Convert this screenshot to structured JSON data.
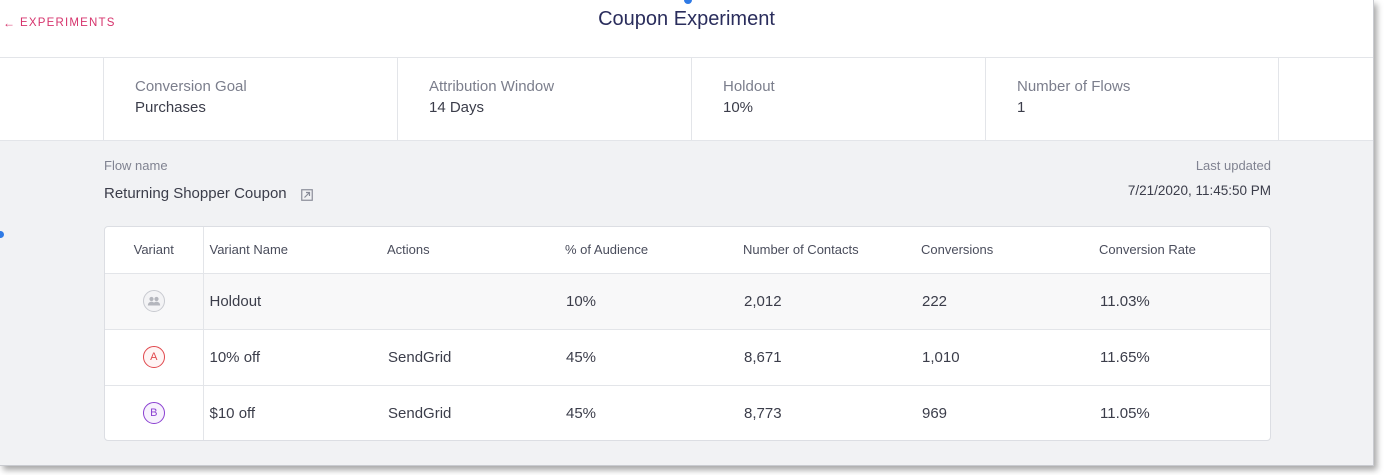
{
  "header": {
    "back_label": "EXPERIMENTS",
    "back_arrow": "←",
    "title": "Coupon Experiment"
  },
  "stats": [
    {
      "label": "Conversion Goal",
      "value": "Purchases"
    },
    {
      "label": "Attribution Window",
      "value": "14 Days"
    },
    {
      "label": "Holdout",
      "value": "10%"
    },
    {
      "label": "Number of Flows",
      "value": "1"
    }
  ],
  "flow": {
    "label": "Flow name",
    "name": "Returning Shopper Coupon",
    "updated_label": "Last updated",
    "updated_value": "7/21/2020, 11:45:50 PM"
  },
  "table": {
    "columns": [
      "Variant",
      "Variant Name",
      "Actions",
      "% of Audience",
      "Number of Contacts",
      "Conversions",
      "Conversion Rate"
    ],
    "rows": [
      {
        "variant": "",
        "variant_icon": "people-icon",
        "name": "Holdout",
        "action": "",
        "audience": "10%",
        "contacts": "2,012",
        "conversions": "222",
        "rate": "11.03%"
      },
      {
        "variant": "A",
        "name": "10% off",
        "action": "SendGrid",
        "audience": "45%",
        "contacts": "8,671",
        "conversions": "1,010",
        "rate": "11.65%"
      },
      {
        "variant": "B",
        "name": "$10 off",
        "action": "SendGrid",
        "audience": "45%",
        "contacts": "8,773",
        "conversions": "969",
        "rate": "11.05%"
      }
    ]
  },
  "colors": {
    "accent": "#d6336c",
    "title": "#2a2d5c",
    "variant_a": "#e0474c",
    "variant_b": "#8a3fd1",
    "indicator": "#2f7ae5"
  }
}
